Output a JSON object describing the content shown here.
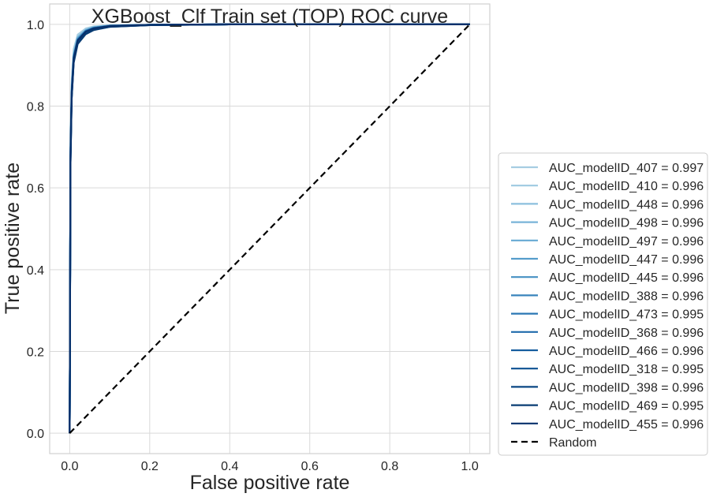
{
  "chart_data": {
    "type": "line",
    "title": "XGBoost_Clf Train set (TOP) ROC curve",
    "xlabel": "False positive rate",
    "ylabel": "True positive rate",
    "xlim": [
      -0.05,
      1.05
    ],
    "ylim": [
      -0.05,
      1.05
    ],
    "xticks": [
      0.0,
      0.2,
      0.4,
      0.6,
      0.8,
      1.0
    ],
    "yticks": [
      0.0,
      0.2,
      0.4,
      0.6,
      0.8,
      1.0
    ],
    "tick_labels_x": [
      "0.0",
      "0.2",
      "0.4",
      "0.6",
      "0.8",
      "1.0"
    ],
    "tick_labels_y": [
      "0.0",
      "0.2",
      "0.4",
      "0.6",
      "0.8",
      "1.0"
    ],
    "grid": true,
    "legend_position": "outside right, lower",
    "series": [
      {
        "name": "AUC_modelID_407 = 0.997",
        "color": "#a6cde2",
        "x": [
          0,
          0.002,
          0.005,
          0.01,
          0.02,
          0.04,
          0.06,
          0.1,
          0.2,
          0.4,
          1.0
        ],
        "y": [
          0,
          0.72,
          0.86,
          0.94,
          0.975,
          0.99,
          0.995,
          0.998,
          0.999,
          1.0,
          1.0
        ]
      },
      {
        "name": "AUC_modelID_410 = 0.996",
        "color": "#9ecae1",
        "x": [
          0,
          0.002,
          0.005,
          0.01,
          0.02,
          0.04,
          0.06,
          0.1,
          0.2,
          0.4,
          1.0
        ],
        "y": [
          0,
          0.7,
          0.85,
          0.93,
          0.97,
          0.988,
          0.994,
          0.997,
          0.999,
          1.0,
          1.0
        ]
      },
      {
        "name": "AUC_modelID_448 = 0.996",
        "color": "#8bbfdd",
        "x": [
          0,
          0.002,
          0.005,
          0.01,
          0.02,
          0.04,
          0.06,
          0.1,
          0.2,
          0.4,
          1.0
        ],
        "y": [
          0,
          0.69,
          0.84,
          0.925,
          0.968,
          0.986,
          0.993,
          0.997,
          0.999,
          1.0,
          1.0
        ]
      },
      {
        "name": "AUC_modelID_498 = 0.996",
        "color": "#79b4d8",
        "x": [
          0,
          0.002,
          0.005,
          0.01,
          0.02,
          0.04,
          0.06,
          0.1,
          0.2,
          0.4,
          1.0
        ],
        "y": [
          0,
          0.7,
          0.845,
          0.928,
          0.968,
          0.986,
          0.993,
          0.997,
          0.999,
          1.0,
          1.0
        ]
      },
      {
        "name": "AUC_modelID_497 = 0.996",
        "color": "#66a9d3",
        "x": [
          0,
          0.002,
          0.005,
          0.01,
          0.02,
          0.04,
          0.06,
          0.1,
          0.2,
          0.4,
          1.0
        ],
        "y": [
          0,
          0.69,
          0.84,
          0.925,
          0.966,
          0.985,
          0.992,
          0.997,
          0.999,
          1.0,
          1.0
        ]
      },
      {
        "name": "AUC_modelID_447 = 0.996",
        "color": "#559dcb",
        "x": [
          0,
          0.002,
          0.005,
          0.01,
          0.02,
          0.04,
          0.06,
          0.1,
          0.2,
          0.4,
          1.0
        ],
        "y": [
          0,
          0.68,
          0.835,
          0.922,
          0.965,
          0.985,
          0.992,
          0.997,
          0.999,
          1.0,
          1.0
        ]
      },
      {
        "name": "AUC_modelID_445 = 0.996",
        "color": "#4691c3",
        "x": [
          0,
          0.002,
          0.005,
          0.01,
          0.02,
          0.04,
          0.06,
          0.1,
          0.2,
          0.4,
          1.0
        ],
        "y": [
          0,
          0.69,
          0.838,
          0.922,
          0.964,
          0.984,
          0.992,
          0.997,
          0.999,
          1.0,
          1.0
        ]
      },
      {
        "name": "AUC_modelID_388 = 0.996",
        "color": "#3884bc",
        "x": [
          0,
          0.002,
          0.005,
          0.01,
          0.02,
          0.04,
          0.06,
          0.1,
          0.2,
          0.4,
          1.0
        ],
        "y": [
          0,
          0.68,
          0.835,
          0.92,
          0.963,
          0.984,
          0.991,
          0.996,
          0.999,
          1.0,
          1.0
        ]
      },
      {
        "name": "AUC_modelID_473 = 0.995",
        "color": "#2a77b4",
        "x": [
          0,
          0.002,
          0.005,
          0.01,
          0.02,
          0.04,
          0.06,
          0.1,
          0.2,
          0.4,
          1.0
        ],
        "y": [
          0,
          0.66,
          0.82,
          0.91,
          0.955,
          0.978,
          0.988,
          0.995,
          0.998,
          1.0,
          1.0
        ]
      },
      {
        "name": "AUC_modelID_368 = 0.996",
        "color": "#1f6aab",
        "x": [
          0,
          0.002,
          0.005,
          0.01,
          0.02,
          0.04,
          0.06,
          0.1,
          0.2,
          0.4,
          1.0
        ],
        "y": [
          0,
          0.68,
          0.835,
          0.92,
          0.962,
          0.983,
          0.991,
          0.996,
          0.999,
          1.0,
          1.0
        ]
      },
      {
        "name": "AUC_modelID_466 = 0.996",
        "color": "#165e9f",
        "x": [
          0,
          0.002,
          0.005,
          0.01,
          0.02,
          0.04,
          0.06,
          0.1,
          0.2,
          0.4,
          1.0
        ],
        "y": [
          0,
          0.68,
          0.832,
          0.918,
          0.962,
          0.983,
          0.991,
          0.996,
          0.999,
          1.0,
          1.0
        ]
      },
      {
        "name": "AUC_modelID_318 = 0.995",
        "color": "#0d5192",
        "x": [
          0,
          0.002,
          0.005,
          0.01,
          0.02,
          0.04,
          0.06,
          0.1,
          0.2,
          0.4,
          1.0
        ],
        "y": [
          0,
          0.66,
          0.82,
          0.908,
          0.954,
          0.977,
          0.987,
          0.994,
          0.998,
          1.0,
          1.0
        ]
      },
      {
        "name": "AUC_modelID_398 = 0.996",
        "color": "#0a4784",
        "x": [
          0,
          0.002,
          0.005,
          0.01,
          0.02,
          0.04,
          0.06,
          0.1,
          0.2,
          0.4,
          1.0
        ],
        "y": [
          0,
          0.68,
          0.832,
          0.918,
          0.961,
          0.982,
          0.99,
          0.996,
          0.999,
          1.0,
          1.0
        ]
      },
      {
        "name": "AUC_modelID_469 = 0.995",
        "color": "#083c73",
        "x": [
          0,
          0.002,
          0.005,
          0.01,
          0.02,
          0.04,
          0.06,
          0.1,
          0.2,
          0.4,
          1.0
        ],
        "y": [
          0,
          0.66,
          0.818,
          0.906,
          0.952,
          0.976,
          0.986,
          0.994,
          0.998,
          1.0,
          1.0
        ]
      },
      {
        "name": "AUC_modelID_455 = 0.996",
        "color": "#08306b",
        "x": [
          0,
          0.002,
          0.005,
          0.01,
          0.02,
          0.04,
          0.06,
          0.1,
          0.2,
          0.4,
          1.0
        ],
        "y": [
          0,
          0.67,
          0.83,
          0.915,
          0.96,
          0.982,
          0.99,
          0.996,
          0.999,
          1.0,
          1.0
        ]
      },
      {
        "name": "Random",
        "color": "#000000",
        "dashed": true,
        "x": [
          0,
          1
        ],
        "y": [
          0,
          1
        ]
      }
    ]
  }
}
